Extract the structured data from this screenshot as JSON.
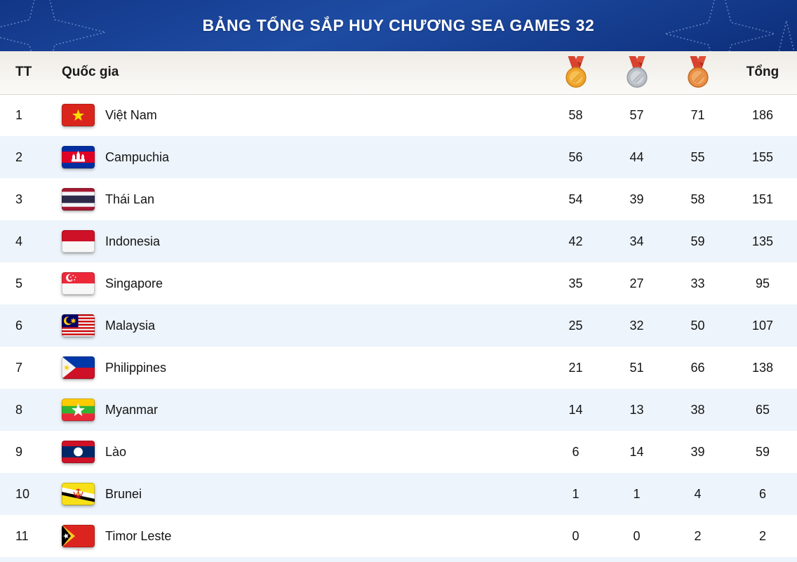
{
  "banner": {
    "title": "BẢNG TỔNG SẮP HUY CHƯƠNG SEA GAMES 32"
  },
  "table": {
    "headers": {
      "rank": "TT",
      "country": "Quốc gia",
      "gold_icon": "gold-medal-icon",
      "silver_icon": "silver-medal-icon",
      "bronze_icon": "bronze-medal-icon",
      "total": "Tổng"
    },
    "rows": [
      {
        "rank": "1",
        "country": "Việt Nam",
        "flag": "vn",
        "gold": "58",
        "silver": "57",
        "bronze": "71",
        "total": "186"
      },
      {
        "rank": "2",
        "country": "Campuchia",
        "flag": "kh",
        "gold": "56",
        "silver": "44",
        "bronze": "55",
        "total": "155"
      },
      {
        "rank": "3",
        "country": "Thái Lan",
        "flag": "th",
        "gold": "54",
        "silver": "39",
        "bronze": "58",
        "total": "151"
      },
      {
        "rank": "4",
        "country": "Indonesia",
        "flag": "id",
        "gold": "42",
        "silver": "34",
        "bronze": "59",
        "total": "135"
      },
      {
        "rank": "5",
        "country": "Singapore",
        "flag": "sg",
        "gold": "35",
        "silver": "27",
        "bronze": "33",
        "total": "95"
      },
      {
        "rank": "6",
        "country": "Malaysia",
        "flag": "my",
        "gold": "25",
        "silver": "32",
        "bronze": "50",
        "total": "107"
      },
      {
        "rank": "7",
        "country": "Philippines",
        "flag": "ph",
        "gold": "21",
        "silver": "51",
        "bronze": "66",
        "total": "138"
      },
      {
        "rank": "8",
        "country": "Myanmar",
        "flag": "mm",
        "gold": "14",
        "silver": "13",
        "bronze": "38",
        "total": "65"
      },
      {
        "rank": "9",
        "country": "Lào",
        "flag": "la",
        "gold": "6",
        "silver": "14",
        "bronze": "39",
        "total": "59"
      },
      {
        "rank": "10",
        "country": "Brunei",
        "flag": "bn",
        "gold": "1",
        "silver": "1",
        "bronze": "4",
        "total": "6"
      },
      {
        "rank": "11",
        "country": "Timor Leste",
        "flag": "tl",
        "gold": "0",
        "silver": "0",
        "bronze": "2",
        "total": "2"
      }
    ]
  },
  "colors": {
    "banner_blue_dark": "#0d2e7a",
    "banner_blue_light": "#1e4ca3",
    "header_bg": "#efece6",
    "row_stripe_blue": "#edf4fb",
    "medal_gold": "#f0a32b",
    "medal_silver": "#b9bfc5",
    "medal_bronze": "#e98e44",
    "ribbon_red": "#d8422e"
  }
}
